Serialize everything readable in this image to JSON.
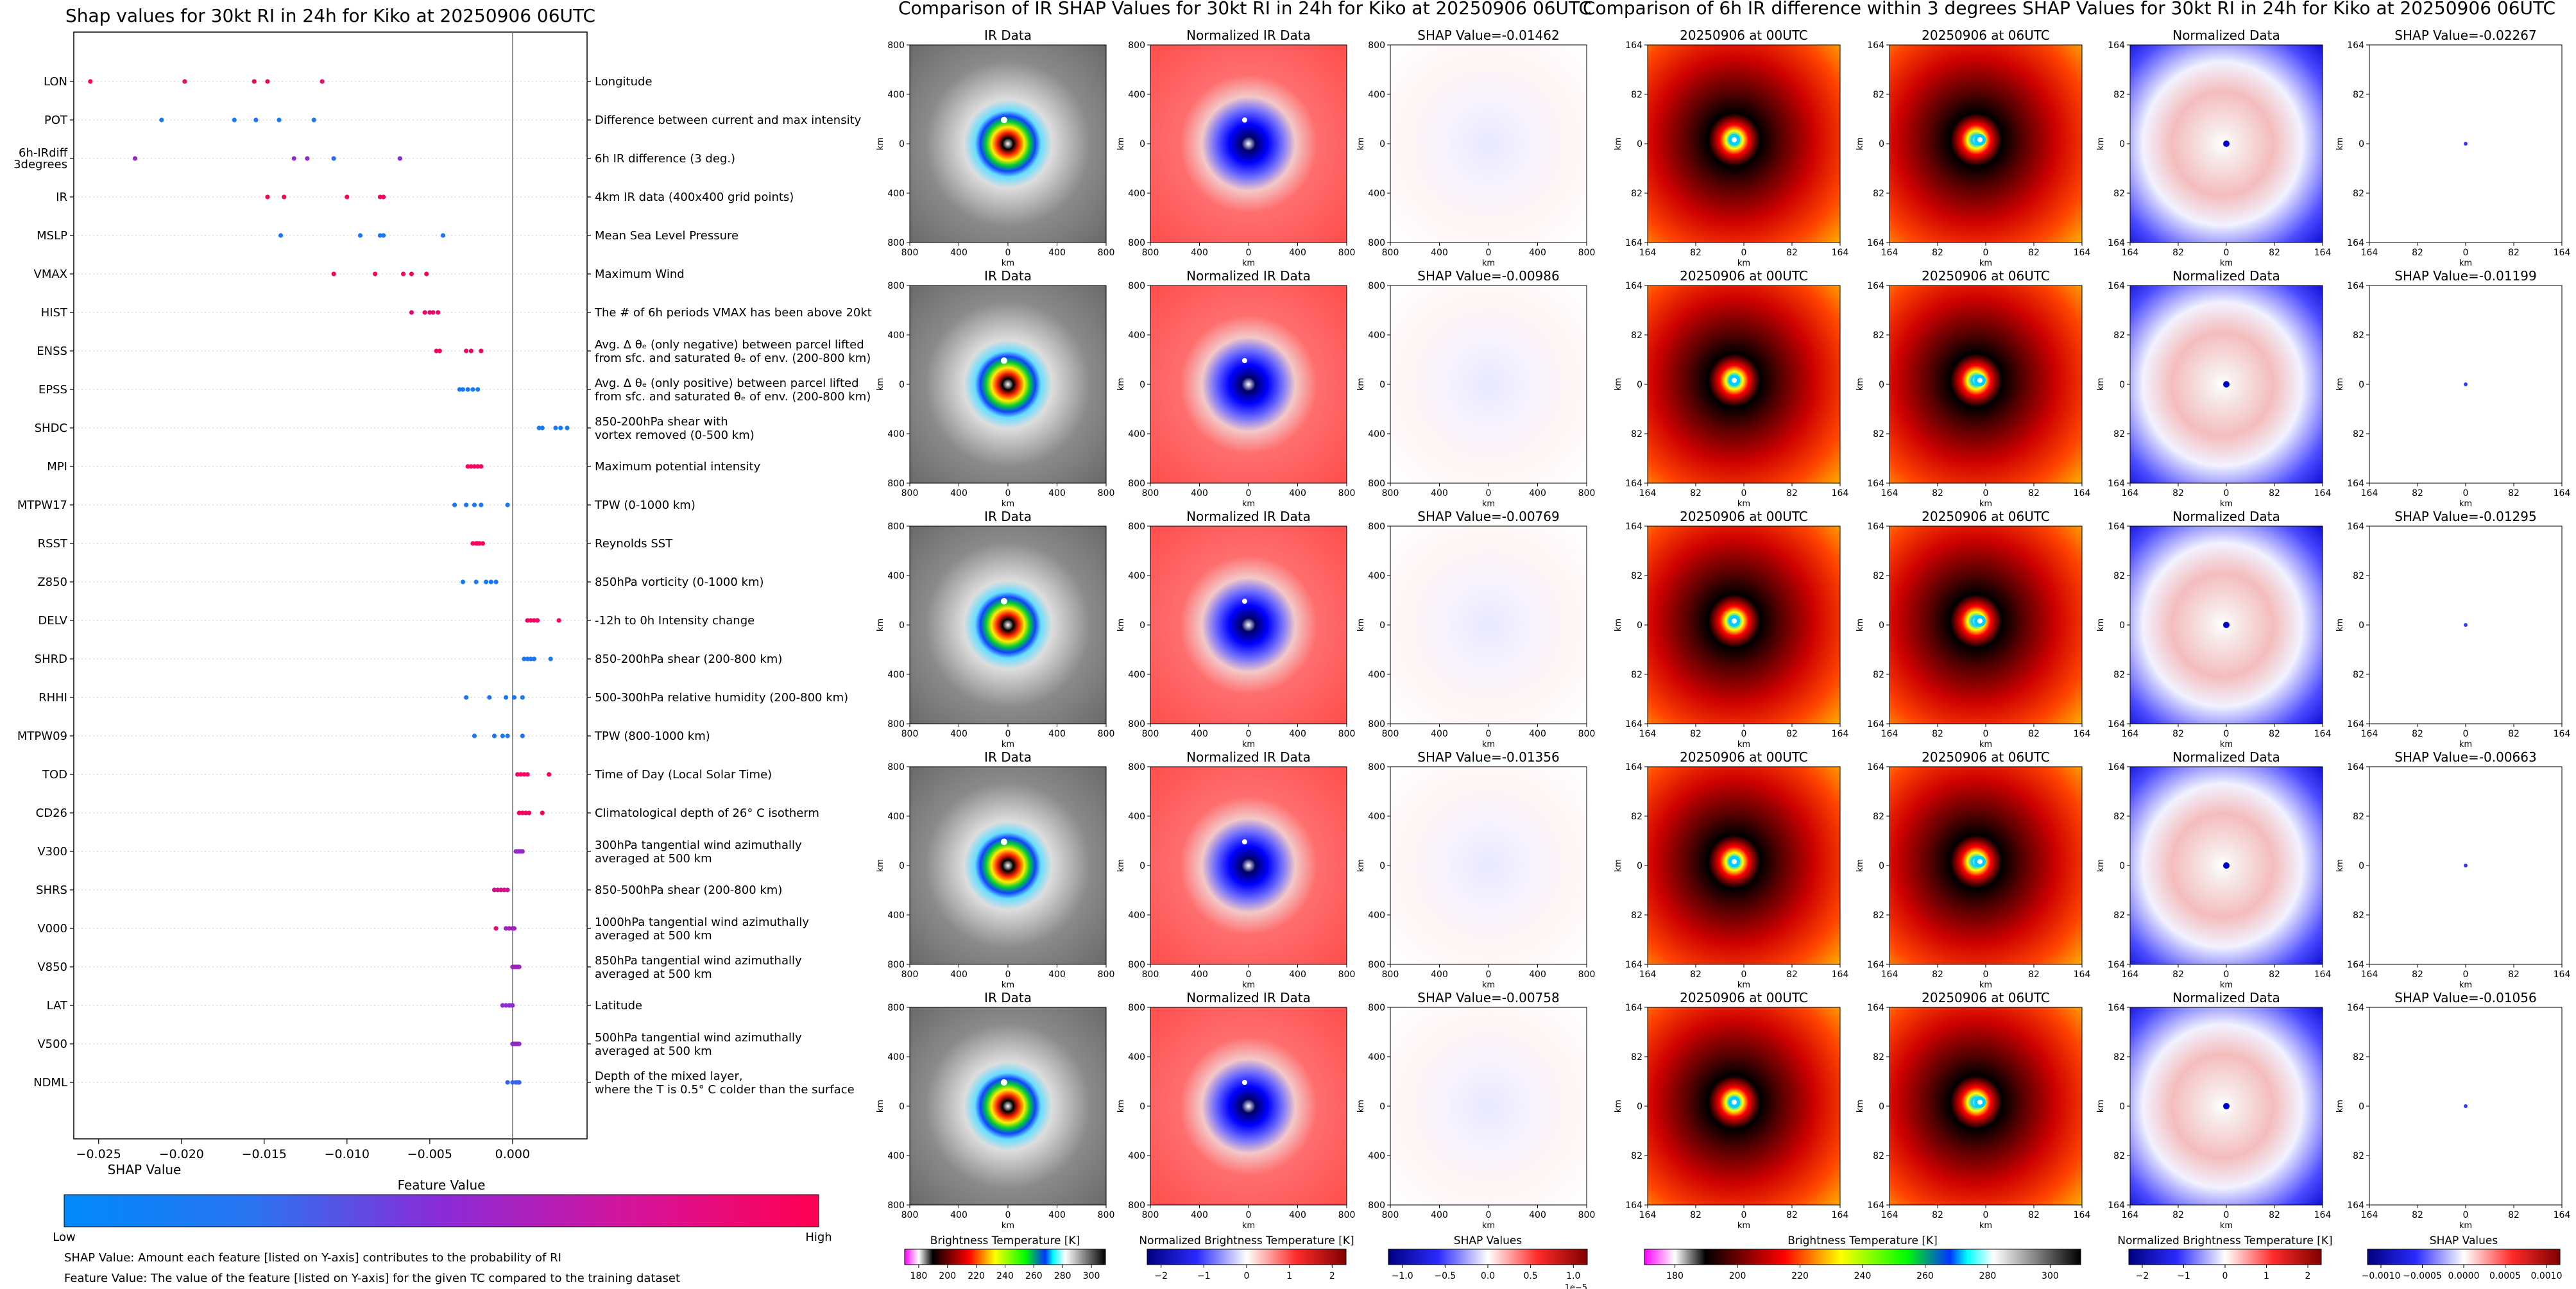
{
  "left_panel": {
    "title": "Shap values for 30kt RI in 24h for Kiko at 20250906 06UTC",
    "xlabel": "SHAP Value",
    "xticks": [
      -0.025,
      -0.02,
      -0.015,
      -0.01,
      -0.005,
      0.0
    ],
    "xtick_labels": [
      "−0.025",
      "−0.020",
      "−0.015",
      "−0.010",
      "−0.005",
      "0.000"
    ],
    "colorbar_label": "Feature Value",
    "low_label": "Low",
    "high_label": "High",
    "note1": "SHAP Value: Amount each feature [listed on Y-axis] contributes to the probability of RI",
    "note2": "Feature Value: The value of the feature [listed on Y-axis] for the given TC compared to the training dataset"
  },
  "chart_data": {
    "type": "scatter",
    "xlabel": "SHAP Value",
    "xlim": [
      -0.0265,
      0.0045
    ],
    "features": [
      {
        "code": "LON",
        "desc": "Longitude",
        "points": [
          [
            -0.0255,
            1.0
          ],
          [
            -0.0198,
            0.9
          ],
          [
            -0.0156,
            0.95
          ],
          [
            -0.0148,
            0.92
          ],
          [
            -0.0115,
            0.9
          ]
        ]
      },
      {
        "code": "POT",
        "desc": "Difference between current and max intensity",
        "points": [
          [
            -0.0212,
            0.1
          ],
          [
            -0.0168,
            0.1
          ],
          [
            -0.0155,
            0.1
          ],
          [
            -0.0141,
            0.1
          ],
          [
            -0.012,
            0.1
          ]
        ]
      },
      {
        "code": "6h-IRdiff\n3degrees",
        "desc": "6h IR difference (3 deg.)",
        "points": [
          [
            -0.0228,
            0.6
          ],
          [
            -0.0132,
            0.55
          ],
          [
            -0.0124,
            0.55
          ],
          [
            -0.0108,
            0.15
          ],
          [
            -0.0068,
            0.5
          ]
        ]
      },
      {
        "code": "IR",
        "desc": "4km IR data (400x400 grid points)",
        "points": [
          [
            -0.0148,
            0.95
          ],
          [
            -0.0138,
            0.95
          ],
          [
            -0.01,
            0.95
          ],
          [
            -0.008,
            0.95
          ],
          [
            -0.0078,
            0.95
          ]
        ]
      },
      {
        "code": "MSLP",
        "desc": "Mean Sea Level Pressure",
        "points": [
          [
            -0.014,
            0.1
          ],
          [
            -0.0092,
            0.1
          ],
          [
            -0.008,
            0.1
          ],
          [
            -0.0078,
            0.1
          ],
          [
            -0.0042,
            0.1
          ]
        ]
      },
      {
        "code": "VMAX",
        "desc": "Maximum Wind",
        "points": [
          [
            -0.0108,
            0.95
          ],
          [
            -0.0083,
            0.95
          ],
          [
            -0.0066,
            0.95
          ],
          [
            -0.0061,
            0.95
          ],
          [
            -0.0052,
            0.95
          ]
        ]
      },
      {
        "code": "HIST",
        "desc": "The # of 6h periods VMAX has been above 20kt",
        "points": [
          [
            -0.0061,
            0.9
          ],
          [
            -0.0053,
            0.9
          ],
          [
            -0.005,
            0.9
          ],
          [
            -0.0048,
            0.9
          ],
          [
            -0.0045,
            0.9
          ]
        ]
      },
      {
        "code": "ENSS",
        "desc": "Avg. Δ θₑ (only negative) between parcel lifted\nfrom sfc. and saturated θₑ of env. (200-800 km)",
        "points": [
          [
            -0.0046,
            0.95
          ],
          [
            -0.0044,
            0.95
          ],
          [
            -0.0028,
            0.95
          ],
          [
            -0.0025,
            0.95
          ],
          [
            -0.0019,
            0.95
          ]
        ]
      },
      {
        "code": "EPSS",
        "desc": "Avg. Δ θₑ (only positive) between parcel lifted\nfrom sfc. and saturated θₑ of env. (200-800 km)",
        "points": [
          [
            -0.0032,
            0.08
          ],
          [
            -0.003,
            0.08
          ],
          [
            -0.0027,
            0.08
          ],
          [
            -0.0024,
            0.08
          ],
          [
            -0.0021,
            0.08
          ]
        ]
      },
      {
        "code": "SHDC",
        "desc": "850-200hPa shear with\nvortex removed (0-500 km)",
        "points": [
          [
            0.0016,
            0.08
          ],
          [
            0.0018,
            0.08
          ],
          [
            0.0026,
            0.08
          ],
          [
            0.0029,
            0.08
          ],
          [
            0.0033,
            0.08
          ]
        ]
      },
      {
        "code": "MPI",
        "desc": "Maximum potential intensity",
        "points": [
          [
            -0.0027,
            0.95
          ],
          [
            -0.0025,
            0.95
          ],
          [
            -0.0023,
            0.95
          ],
          [
            -0.0021,
            0.95
          ],
          [
            -0.0019,
            0.95
          ]
        ]
      },
      {
        "code": "MTPW17",
        "desc": "TPW (0-1000 km)",
        "points": [
          [
            -0.0035,
            0.1
          ],
          [
            -0.0028,
            0.1
          ],
          [
            -0.0023,
            0.1
          ],
          [
            -0.0019,
            0.1
          ],
          [
            -0.0003,
            0.1
          ]
        ]
      },
      {
        "code": "RSST",
        "desc": "Reynolds SST",
        "points": [
          [
            -0.0024,
            0.95
          ],
          [
            -0.0022,
            0.95
          ],
          [
            -0.0021,
            0.95
          ],
          [
            -0.002,
            0.95
          ],
          [
            -0.0018,
            0.95
          ]
        ]
      },
      {
        "code": "Z850",
        "desc": "850hPa vorticity (0-1000 km)",
        "points": [
          [
            -0.003,
            0.1
          ],
          [
            -0.0022,
            0.1
          ],
          [
            -0.0016,
            0.1
          ],
          [
            -0.0013,
            0.1
          ],
          [
            -0.001,
            0.1
          ]
        ]
      },
      {
        "code": "DELV",
        "desc": "-12h to 0h Intensity change",
        "points": [
          [
            0.0009,
            0.95
          ],
          [
            0.0011,
            0.95
          ],
          [
            0.0013,
            0.95
          ],
          [
            0.0015,
            0.95
          ],
          [
            0.0028,
            0.95
          ]
        ]
      },
      {
        "code": "SHRD",
        "desc": "850-200hPa shear (200-800 km)",
        "points": [
          [
            0.0007,
            0.1
          ],
          [
            0.0009,
            0.1
          ],
          [
            0.0011,
            0.1
          ],
          [
            0.0013,
            0.1
          ],
          [
            0.0023,
            0.1
          ]
        ]
      },
      {
        "code": "RHHI",
        "desc": "500-300hPa relative humidity (200-800 km)",
        "points": [
          [
            -0.0028,
            0.1
          ],
          [
            -0.0014,
            0.1
          ],
          [
            -0.0004,
            0.1
          ],
          [
            0.0001,
            0.1
          ],
          [
            0.0006,
            0.1
          ]
        ]
      },
      {
        "code": "MTPW09",
        "desc": "TPW (800-1000 km)",
        "points": [
          [
            -0.0023,
            0.1
          ],
          [
            -0.0011,
            0.1
          ],
          [
            -0.0006,
            0.1
          ],
          [
            -0.0003,
            0.1
          ],
          [
            0.0006,
            0.1
          ]
        ]
      },
      {
        "code": "TOD",
        "desc": "Time of Day (Local Solar Time)",
        "points": [
          [
            0.0003,
            0.95
          ],
          [
            0.0005,
            0.95
          ],
          [
            0.0007,
            0.95
          ],
          [
            0.0009,
            0.95
          ],
          [
            0.0022,
            0.95
          ]
        ]
      },
      {
        "code": "CD26",
        "desc": "Climatological depth of 26° C isotherm",
        "points": [
          [
            0.0004,
            0.95
          ],
          [
            0.0006,
            0.95
          ],
          [
            0.0008,
            0.95
          ],
          [
            0.001,
            0.95
          ],
          [
            0.0018,
            0.95
          ]
        ]
      },
      {
        "code": "V300",
        "desc": "300hPa tangential wind azimuthally\naveraged at 500 km",
        "points": [
          [
            0.0002,
            0.55
          ],
          [
            0.0003,
            0.55
          ],
          [
            0.0004,
            0.55
          ],
          [
            0.0005,
            0.55
          ],
          [
            0.0006,
            0.55
          ]
        ]
      },
      {
        "code": "SHRS",
        "desc": "850-500hPa shear (200-800 km)",
        "points": [
          [
            -0.0011,
            0.8
          ],
          [
            -0.0009,
            0.8
          ],
          [
            -0.0007,
            0.8
          ],
          [
            -0.0005,
            0.8
          ],
          [
            -0.0003,
            0.8
          ]
        ]
      },
      {
        "code": "V000",
        "desc": "1000hPa tangential wind azimuthally\naveraged at 500 km",
        "points": [
          [
            -0.001,
            0.9
          ],
          [
            -0.0004,
            0.6
          ],
          [
            -0.0002,
            0.6
          ],
          [
            0.0,
            0.6
          ],
          [
            0.0001,
            0.6
          ]
        ]
      },
      {
        "code": "V850",
        "desc": "850hPa tangential wind azimuthally\naveraged at 500 km",
        "points": [
          [
            0.0,
            0.6
          ],
          [
            0.0001,
            0.6
          ],
          [
            0.0002,
            0.6
          ],
          [
            0.0003,
            0.6
          ],
          [
            0.0004,
            0.6
          ]
        ]
      },
      {
        "code": "LAT",
        "desc": "Latitude",
        "points": [
          [
            -0.0006,
            0.5
          ],
          [
            -0.0004,
            0.5
          ],
          [
            -0.0002,
            0.5
          ],
          [
            -0.0001,
            0.5
          ],
          [
            0.0,
            0.5
          ]
        ]
      },
      {
        "code": "V500",
        "desc": "500hPa tangential wind azimuthally\naveraged at 500 km",
        "points": [
          [
            0.0,
            0.55
          ],
          [
            0.0001,
            0.55
          ],
          [
            0.0002,
            0.55
          ],
          [
            0.0003,
            0.55
          ],
          [
            0.0004,
            0.55
          ]
        ]
      },
      {
        "code": "NDML",
        "desc": "Depth of the mixed layer,\nwhere the T is 0.5° C colder than the surface",
        "points": [
          [
            -0.0003,
            0.2
          ],
          [
            0.0,
            0.2
          ],
          [
            0.0002,
            0.2
          ],
          [
            0.0003,
            0.2
          ],
          [
            0.0004,
            0.2
          ]
        ]
      }
    ]
  },
  "middle_section": {
    "title": "Comparison of IR SHAP Values for 30kt RI in 24h for Kiko at 20250906 06UTC",
    "col_titles": [
      "IR Data",
      "Normalized IR Data"
    ],
    "shap_titles": [
      "SHAP Value=-0.01462",
      "SHAP Value=-0.00986",
      "SHAP Value=-0.00769",
      "SHAP Value=-0.01356",
      "SHAP Value=-0.00758"
    ],
    "tick_labels": [
      "800",
      "400",
      "0",
      "400",
      "800"
    ],
    "axis_unit": "km",
    "cbar1_label": "Brightness Temperature [K]",
    "cbar1_ticks": [
      "180",
      "200",
      "220",
      "240",
      "260",
      "280",
      "300"
    ],
    "cbar2_label": "Normalized Brightness Temperature [K]",
    "cbar2_ticks": [
      "−2",
      "−1",
      "0",
      "1",
      "2"
    ],
    "cbar3_label": "SHAP Values",
    "cbar3_ticks": [
      "−1.0",
      "−0.5",
      "0.0",
      "0.5",
      "1.0"
    ],
    "cbar3_exp": "1e−5"
  },
  "right_section": {
    "title": "Comparison of 6h IR difference within 3 degrees SHAP Values for 30kt RI in 24h for Kiko at 20250906 06UTC",
    "col_titles": [
      "20250906 at 00UTC",
      "20250906 at 06UTC",
      "Normalized Data"
    ],
    "shap_titles": [
      "SHAP Value=-0.02267",
      "SHAP Value=-0.01199",
      "SHAP Value=-0.01295",
      "SHAP Value=-0.00663",
      "SHAP Value=-0.01056"
    ],
    "tick_labels": [
      "164",
      "82",
      "0",
      "82",
      "164"
    ],
    "axis_unit": "km",
    "cbar1_label": "Brightness Temperature [K]",
    "cbar1_ticks": [
      "180",
      "200",
      "220",
      "240",
      "260",
      "280",
      "300"
    ],
    "cbar2_label": "Normalized Brightness Temperature [K]",
    "cbar2_ticks": [
      "−2",
      "−1",
      "0",
      "1",
      "2"
    ],
    "cbar3_label": "SHAP Values",
    "cbar3_ticks": [
      "−0.0010",
      "−0.0005",
      "0.0000",
      "0.0005",
      "0.0010"
    ]
  },
  "colors": {
    "low": "#1e88e5",
    "mid": "#7e2fd0",
    "high": "#ff0052"
  }
}
